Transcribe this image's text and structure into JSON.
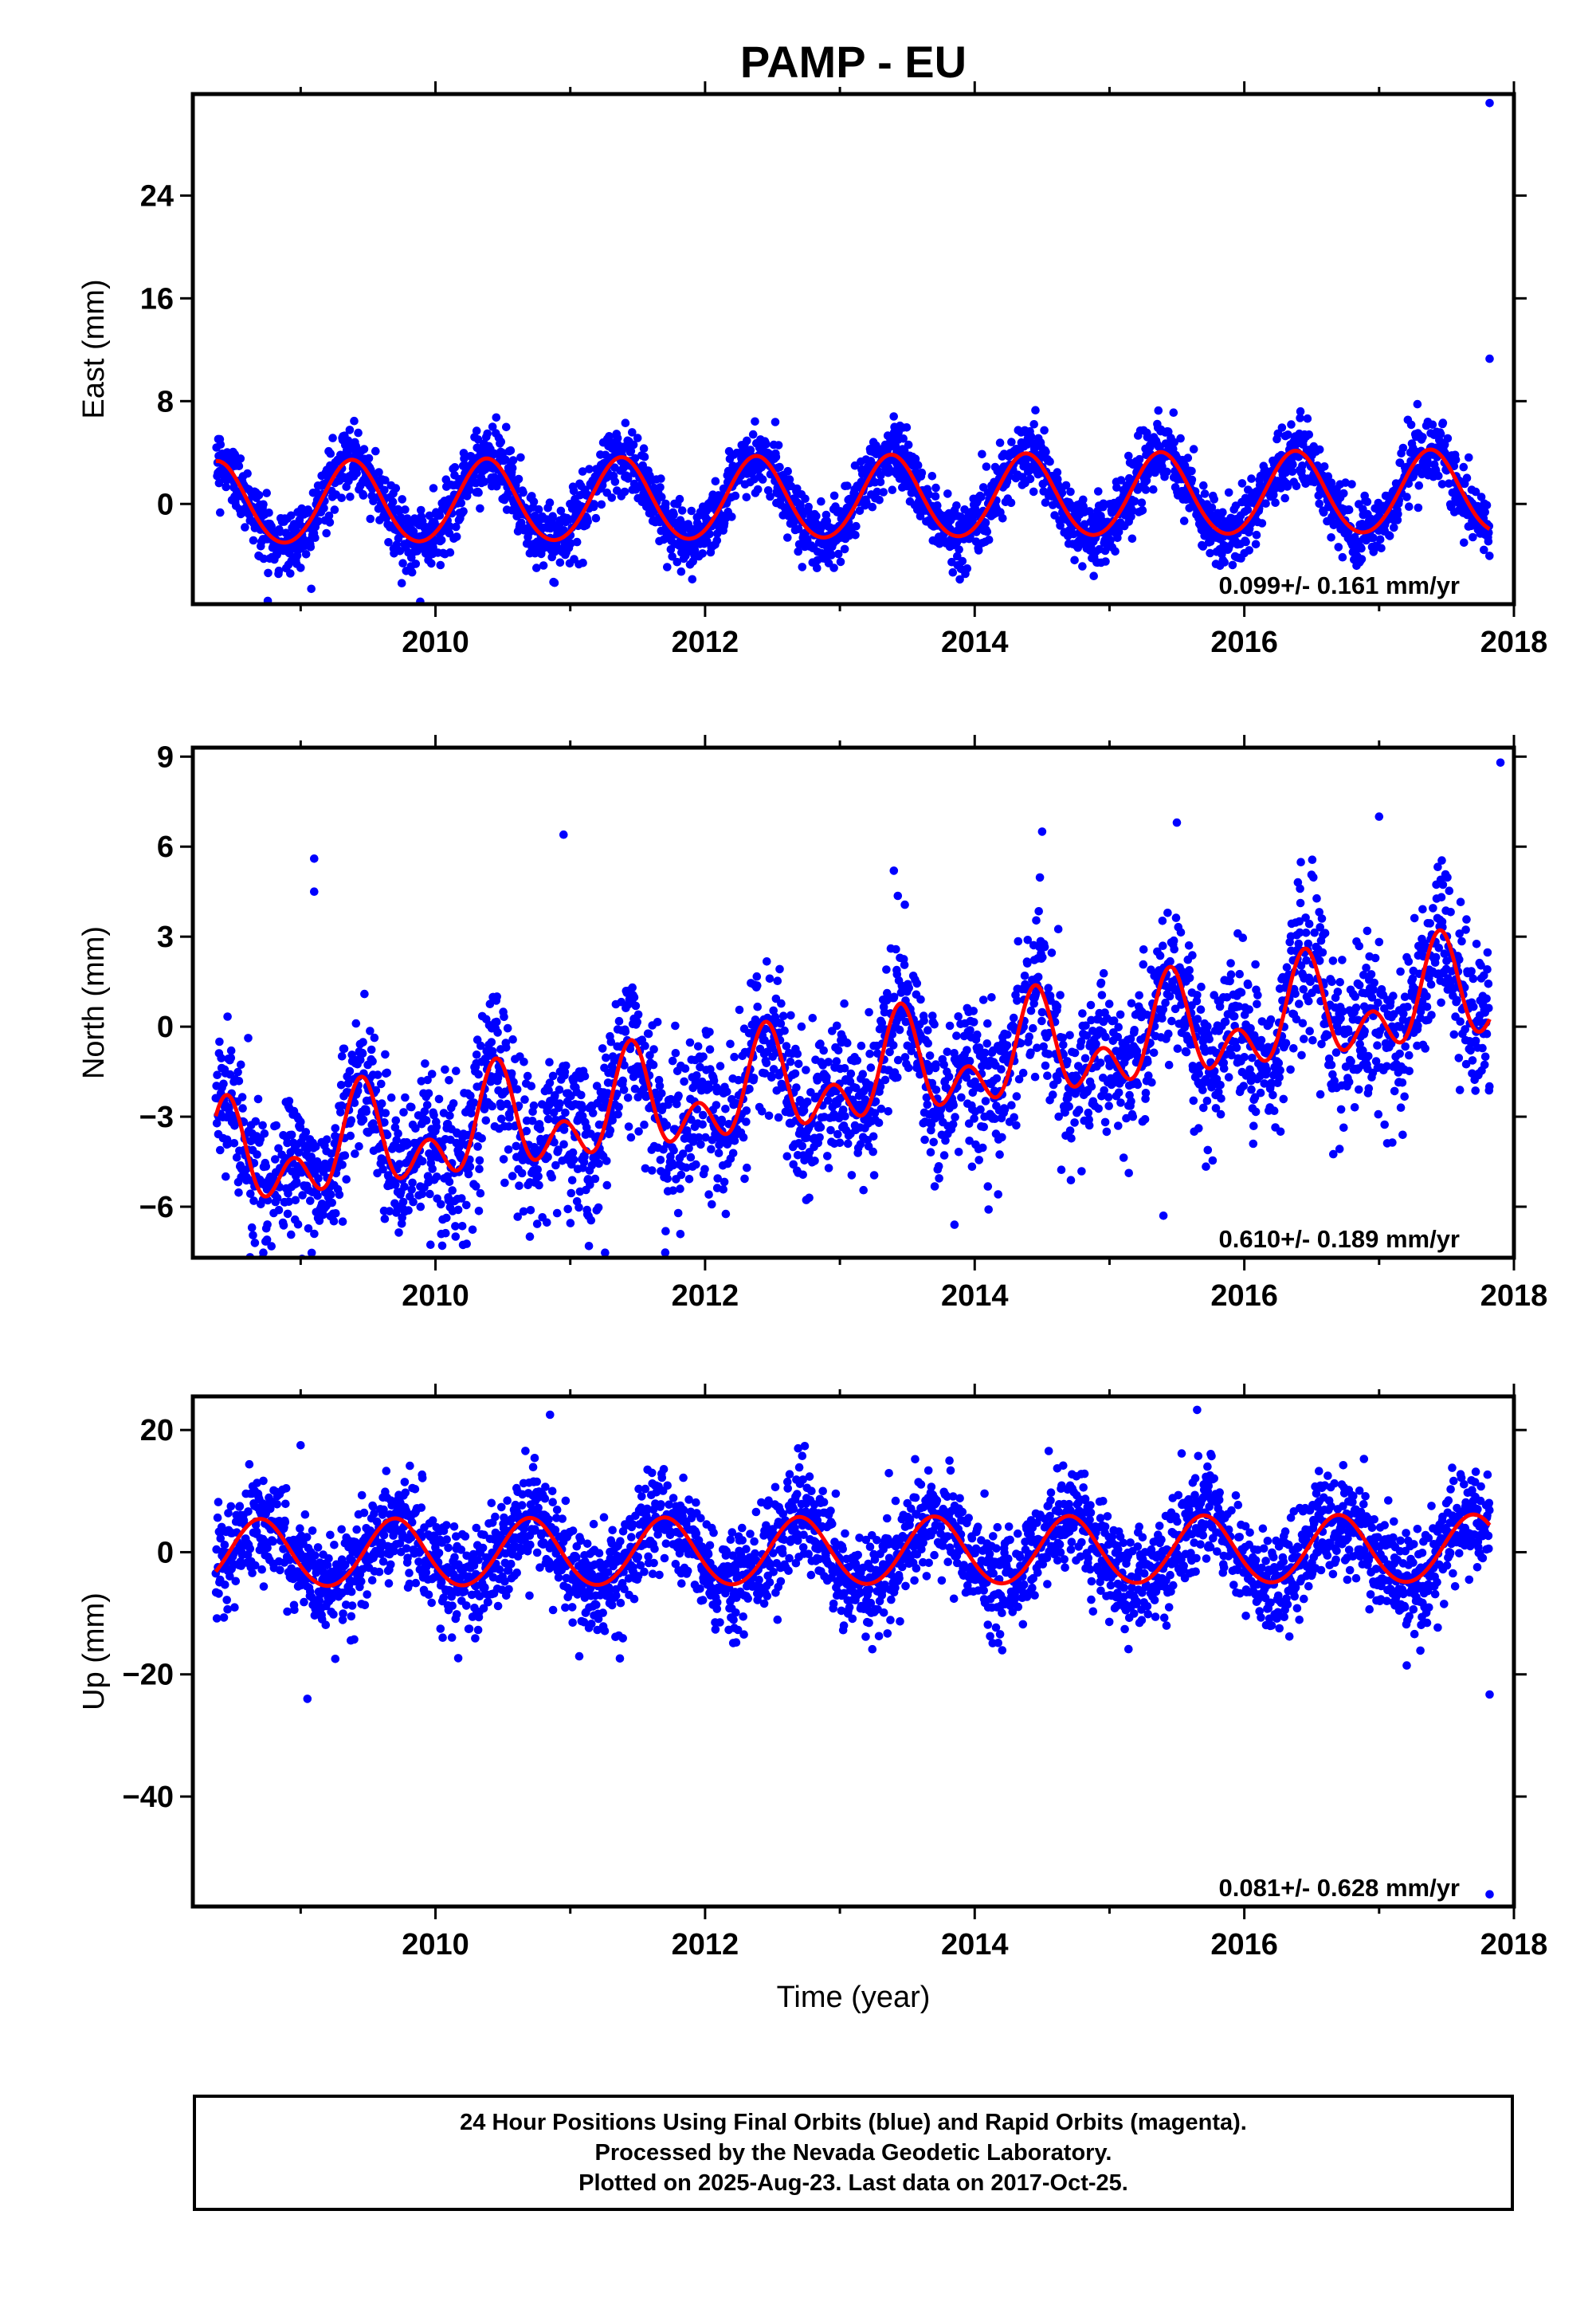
{
  "title": "PAMP - EU",
  "xlabel": "Time (year)",
  "colors": {
    "points": "#0000ff",
    "fit": "#ff0000",
    "frame": "#000000"
  },
  "caption": {
    "line1": "24 Hour Positions Using Final Orbits (blue) and Rapid Orbits (magenta).",
    "line2": "Processed by the Nevada Geodetic Laboratory.",
    "line3": "Plotted on 2025-Aug-23. Last data on 2017-Oct-25."
  },
  "chart_data": [
    {
      "type": "scatter",
      "ylabel": "East (mm)",
      "xlim": [
        2008.2,
        2018.0
      ],
      "ylim": [
        -7.8,
        31.9
      ],
      "xticks": [
        2010,
        2012,
        2014,
        2016,
        2018
      ],
      "yticks": [
        0,
        8,
        16,
        24
      ],
      "rate": "0.099+/- 0.161 mm/yr",
      "fit": {
        "offset": 0.4,
        "trend": 0.099,
        "annual_amp": 3.2,
        "annual_peak": 2009.38,
        "semiannual_amp": 0.2,
        "semiannual_peak": 2009.38
      },
      "scatter_sd": 1.3,
      "outliers": [
        [
          2017.82,
          31.2
        ],
        [
          2017.82,
          11.3
        ]
      ]
    },
    {
      "type": "scatter",
      "ylabel": "North (mm)",
      "xlim": [
        2008.2,
        2018.0
      ],
      "ylim": [
        -7.7,
        9.3
      ],
      "xticks": [
        2010,
        2012,
        2014,
        2016,
        2018
      ],
      "yticks": [
        -6,
        -3,
        0,
        3,
        6,
        9
      ],
      "rate": "0.610+/- 0.189 mm/yr",
      "fit": {
        "offset": -1.8,
        "trend": 0.61,
        "annual_amp": 1.2,
        "annual_peak": 2009.45,
        "semiannual_amp": 1.1,
        "semiannual_peak": 2009.45
      },
      "scatter_sd": 1.25,
      "outliers": [
        [
          2009.1,
          5.6
        ],
        [
          2009.1,
          4.5
        ],
        [
          2010.95,
          6.4
        ],
        [
          2013.4,
          5.2
        ],
        [
          2014.5,
          6.5
        ],
        [
          2015.5,
          6.8
        ],
        [
          2017.0,
          7.0
        ],
        [
          2017.9,
          8.8
        ],
        [
          2015.4,
          -6.3
        ],
        [
          2010.05,
          -7.3
        ],
        [
          2013.85,
          -6.6
        ],
        [
          2010.7,
          -7.0
        ],
        [
          2008.75,
          -7.1
        ]
      ]
    },
    {
      "type": "scatter",
      "ylabel": "Up (mm)",
      "xlim": [
        2008.2,
        2018.0
      ],
      "ylim": [
        -58.0,
        25.5
      ],
      "xticks": [
        2010,
        2012,
        2014,
        2016,
        2018
      ],
      "yticks": [
        -40,
        -20,
        0,
        20
      ],
      "rate": "0.081+/- 0.628 mm/yr",
      "fit": {
        "offset": 0.0,
        "trend": 0.081,
        "annual_amp": 5.5,
        "annual_peak": 2008.7,
        "semiannual_amp": 0.3,
        "semiannual_peak": 2008.7
      },
      "scatter_sd": 4.2,
      "outliers": [
        [
          2009.05,
          -24.0
        ],
        [
          2010.85,
          22.5
        ],
        [
          2015.65,
          23.3
        ],
        [
          2017.82,
          -23.3
        ],
        [
          2017.82,
          -56.0
        ],
        [
          2009.0,
          17.5
        ]
      ]
    }
  ]
}
